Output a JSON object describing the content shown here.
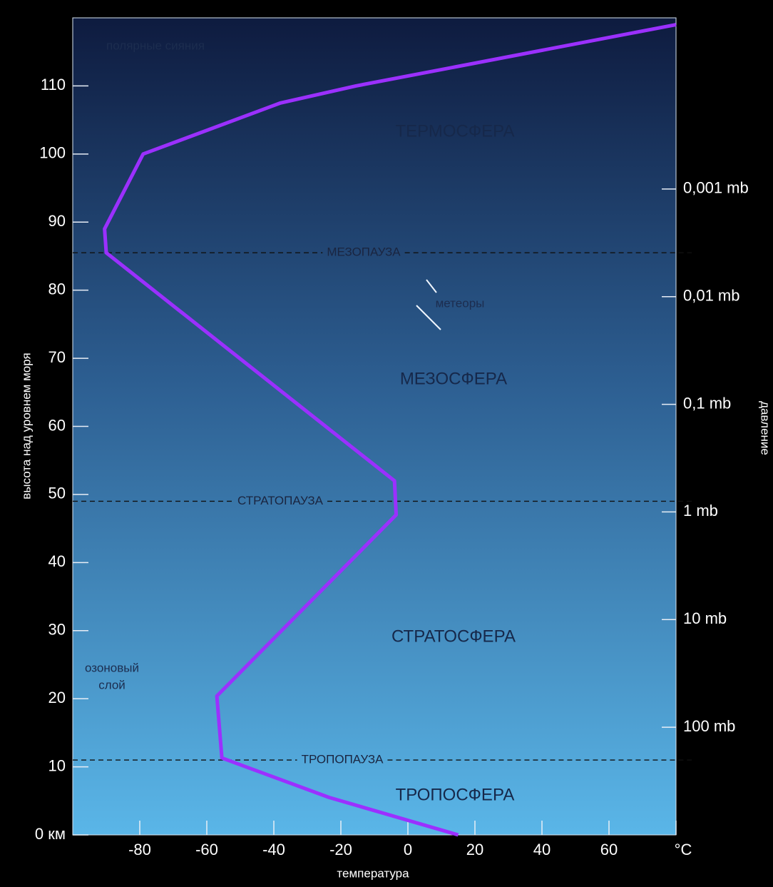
{
  "chart_data": {
    "type": "line",
    "x_label": "температура",
    "y_label": "высота над уровнем моря",
    "y2_label": "давление",
    "xlim": [
      -100,
      80
    ],
    "xticks": [
      -80,
      -60,
      -40,
      -20,
      0,
      20,
      40,
      60,
      {
        "value": 80,
        "label": "°C"
      }
    ],
    "ylim": [
      0,
      120
    ],
    "yticks": [
      {
        "value": 0,
        "label": "0 км"
      },
      10,
      20,
      30,
      40,
      50,
      60,
      70,
      80,
      90,
      100,
      110
    ],
    "y2lim": [
      1000,
      2.57e-05
    ],
    "y2scale": "log",
    "y2ticks": [
      {
        "value": 0.001,
        "label": "0,001 mb"
      },
      {
        "value": 0.01,
        "label": "0,01 mb"
      },
      {
        "value": 0.1,
        "label": "0,1 mb"
      },
      {
        "value": 1,
        "label": "1 mb"
      },
      {
        "value": 10,
        "label": "10 mb"
      },
      {
        "value": 100,
        "label": "100 mb"
      }
    ],
    "series": [
      {
        "color": "#9b30ff",
        "x": [
          15,
          -23.5,
          -55.5,
          -57,
          -3.5,
          -4,
          -90,
          -90.5,
          -79,
          -38,
          -15.5,
          80
        ],
        "values": [
          0,
          5.5,
          11.3,
          20.4,
          47,
          52,
          85.5,
          89,
          100,
          107.5,
          110,
          119
        ]
      }
    ],
    "reference_lines": [
      {
        "value": 85.5,
        "label": "МЕЗОПАУЗА"
      },
      {
        "value": 49,
        "label": "СТРАТОПАУЗА"
      },
      {
        "value": 11,
        "label": "ТРОПОПАУЗА"
      }
    ],
    "annotations": [
      "ТЕРМОСФЕРА",
      "МЕЗОСФЕРА",
      "СТРАТОСФЕРА",
      "ТРОПОСФЕРА",
      "полярные сияния",
      "метеоры",
      "озоновый",
      "слой"
    ]
  }
}
